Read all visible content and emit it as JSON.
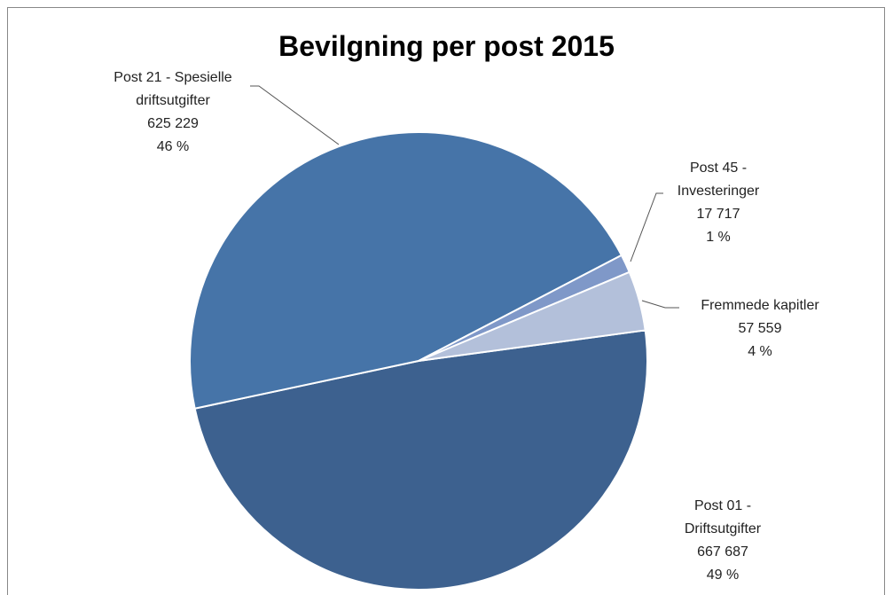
{
  "chart_data": {
    "type": "pie",
    "title": "Bevilgning per post 2015",
    "categories": [
      "Post 01 - Driftsutgifter",
      "Post 21 - Spesielle driftsutgifter",
      "Post 45 - Investeringer",
      "Fremmede kapitler"
    ],
    "values": [
      667687,
      625229,
      17717,
      57559
    ],
    "value_labels": [
      "667 687",
      "625 229",
      "17 717",
      "57 559"
    ],
    "percentage_labels": [
      "49 %",
      "46 %",
      "1 %",
      "4 %"
    ],
    "colors": [
      "#3d618f",
      "#4674a8",
      "#7f98c8",
      "#b3c0da"
    ]
  }
}
